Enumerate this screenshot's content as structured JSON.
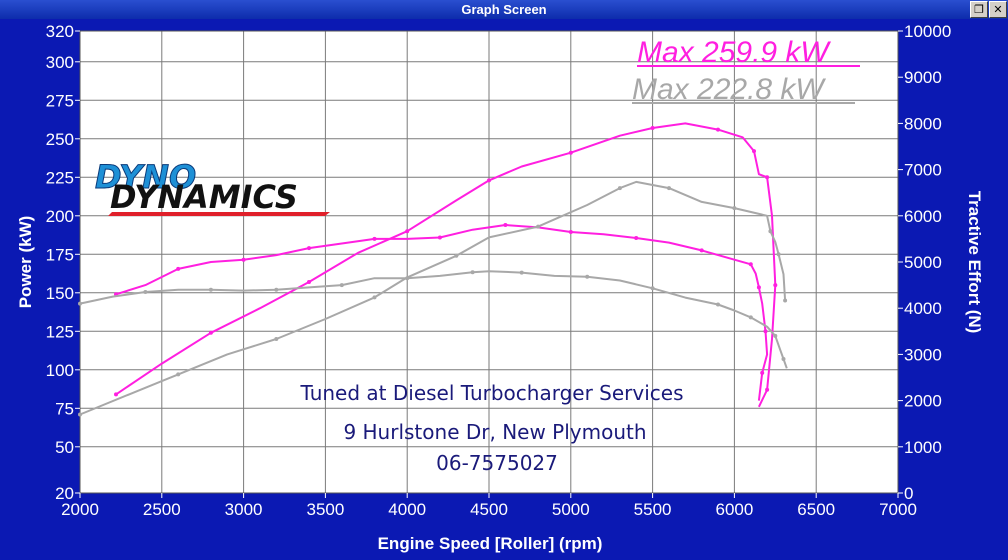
{
  "window": {
    "title": "Graph Screen",
    "restore_glyph": "❐",
    "close_glyph": "✕"
  },
  "logo": {
    "line1": "DYNO",
    "line2": "DYNAMICS"
  },
  "annotations": {
    "max_magenta": "Max 259.9 kW",
    "max_gray": "Max 222.8 kW",
    "shop_name": "Tuned at Diesel Turbocharger Services",
    "address": "9 Hurlstone Dr, New Plymouth",
    "phone": "06-7575027"
  },
  "colors": {
    "background": "#0b19b3",
    "plot_area": "#ffffff",
    "grid": "#7a7a7a",
    "magenta": "#ff1fe0",
    "gray": "#a8a8a8",
    "annotation_text": "#1a1a7a",
    "logo_blue": "#1e90d6",
    "logo_red": "#e0202a",
    "logo_black": "#111111"
  },
  "chart_data": {
    "type": "line",
    "xlabel": "Engine Speed [Roller] (rpm)",
    "ylabel": "Power (kW)",
    "y2label": "Tractive Effort (N)",
    "xlim": [
      2000,
      7000
    ],
    "ylim": [
      20,
      320
    ],
    "y2lim": [
      0,
      10000
    ],
    "x_ticks": [
      "2000",
      "2500",
      "3000",
      "3500",
      "4000",
      "4500",
      "5000",
      "5500",
      "6000",
      "6500",
      "7000"
    ],
    "y_ticks": [
      "20",
      "50",
      "75",
      "100",
      "125",
      "150",
      "175",
      "200",
      "225",
      "250",
      "275",
      "300",
      "320"
    ],
    "y2_ticks": [
      "0",
      "1000",
      "2000",
      "3000",
      "4000",
      "5000",
      "6000",
      "7000",
      "8000",
      "9000",
      "10000"
    ],
    "grid": true,
    "series": [
      {
        "color": "magenta",
        "axis": "left",
        "label": "Max 259.9 kW",
        "values": [
          [
            2220,
            84
          ],
          [
            2500,
            104
          ],
          [
            2800,
            124
          ],
          [
            3100,
            140
          ],
          [
            3400,
            157
          ],
          [
            3700,
            176
          ],
          [
            4000,
            190
          ],
          [
            4300,
            210
          ],
          [
            4500,
            223
          ],
          [
            4700,
            232
          ],
          [
            5000,
            241
          ],
          [
            5300,
            252
          ],
          [
            5500,
            257
          ],
          [
            5700,
            260
          ],
          [
            5900,
            256
          ],
          [
            6050,
            251
          ],
          [
            6120,
            242
          ],
          [
            6150,
            227
          ],
          [
            6200,
            225
          ],
          [
            6230,
            200
          ],
          [
            6250,
            155
          ],
          [
            6230,
            120
          ],
          [
            6200,
            87
          ],
          [
            6150,
            76
          ]
        ]
      },
      {
        "color": "magenta",
        "axis": "right",
        "values": [
          [
            2220,
            4300
          ],
          [
            2400,
            4500
          ],
          [
            2600,
            4850
          ],
          [
            2800,
            5000
          ],
          [
            3000,
            5050
          ],
          [
            3200,
            5150
          ],
          [
            3400,
            5300
          ],
          [
            3600,
            5400
          ],
          [
            3800,
            5500
          ],
          [
            4000,
            5500
          ],
          [
            4200,
            5530
          ],
          [
            4400,
            5700
          ],
          [
            4600,
            5800
          ],
          [
            4800,
            5750
          ],
          [
            5000,
            5650
          ],
          [
            5200,
            5600
          ],
          [
            5400,
            5520
          ],
          [
            5600,
            5420
          ],
          [
            5800,
            5250
          ],
          [
            6000,
            5050
          ],
          [
            6100,
            4950
          ],
          [
            6130,
            4750
          ],
          [
            6150,
            4450
          ],
          [
            6170,
            4100
          ],
          [
            6190,
            3500
          ],
          [
            6200,
            3000
          ],
          [
            6170,
            2600
          ],
          [
            6150,
            2000
          ]
        ]
      },
      {
        "color": "gray",
        "axis": "left",
        "label": "Max 222.8 kW",
        "values": [
          [
            2000,
            71
          ],
          [
            2300,
            84
          ],
          [
            2600,
            97
          ],
          [
            2900,
            110
          ],
          [
            3200,
            120
          ],
          [
            3500,
            133
          ],
          [
            3800,
            147
          ],
          [
            4000,
            160
          ],
          [
            4300,
            174
          ],
          [
            4500,
            186
          ],
          [
            4800,
            193
          ],
          [
            5100,
            207
          ],
          [
            5300,
            218
          ],
          [
            5400,
            222
          ],
          [
            5600,
            218
          ],
          [
            5800,
            209
          ],
          [
            6000,
            205
          ],
          [
            6200,
            200
          ],
          [
            6220,
            190
          ],
          [
            6250,
            183
          ],
          [
            6270,
            175
          ],
          [
            6300,
            162
          ],
          [
            6310,
            145
          ]
        ]
      },
      {
        "color": "gray",
        "axis": "right",
        "values": [
          [
            2000,
            4100
          ],
          [
            2200,
            4250
          ],
          [
            2400,
            4350
          ],
          [
            2600,
            4400
          ],
          [
            2800,
            4400
          ],
          [
            3000,
            4380
          ],
          [
            3200,
            4400
          ],
          [
            3400,
            4450
          ],
          [
            3600,
            4500
          ],
          [
            3800,
            4650
          ],
          [
            4000,
            4650
          ],
          [
            4200,
            4700
          ],
          [
            4400,
            4780
          ],
          [
            4500,
            4800
          ],
          [
            4700,
            4770
          ],
          [
            4900,
            4700
          ],
          [
            5100,
            4680
          ],
          [
            5300,
            4600
          ],
          [
            5500,
            4430
          ],
          [
            5700,
            4230
          ],
          [
            5900,
            4080
          ],
          [
            6000,
            3950
          ],
          [
            6100,
            3800
          ],
          [
            6200,
            3600
          ],
          [
            6250,
            3400
          ],
          [
            6280,
            3100
          ],
          [
            6300,
            2900
          ],
          [
            6320,
            2700
          ]
        ]
      }
    ]
  }
}
